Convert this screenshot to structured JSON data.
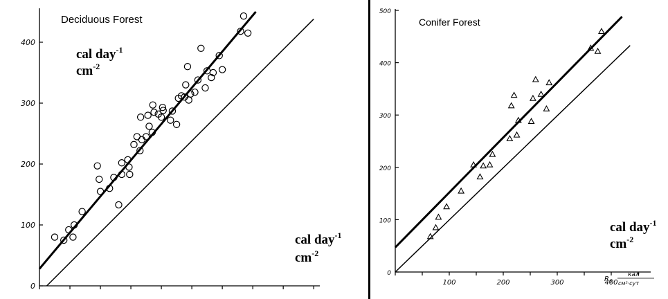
{
  "chart_data": [
    {
      "type": "scatter",
      "title": "Deciduous Forest",
      "y_unit_label": {
        "base1": "cal day",
        "sup1": "-1",
        "base2": "cm",
        "sup2": "-2"
      },
      "x_unit_label": {
        "base1": "cal day",
        "sup1": "-1",
        "base2": "cm",
        "sup2": "-2"
      },
      "xlim": [
        0,
        460
      ],
      "ylim": [
        0,
        450
      ],
      "x_ticks": [
        0,
        50,
        100,
        150,
        200,
        250,
        300,
        350,
        400,
        450
      ],
      "y_ticks": [
        0,
        100,
        200,
        300,
        400
      ],
      "y_tick_labels": [
        "0",
        "100",
        "200",
        "300",
        "400"
      ],
      "grid": false,
      "marker": "circle",
      "series": [
        {
          "points": [
            [
              25,
              80
            ],
            [
              40,
              75
            ],
            [
              48,
              92
            ],
            [
              55,
              80
            ],
            [
              57,
              100
            ],
            [
              70,
              122
            ],
            [
              95,
              197
            ],
            [
              98,
              175
            ],
            [
              100,
              155
            ],
            [
              115,
              160
            ],
            [
              122,
              178
            ],
            [
              130,
              133
            ],
            [
              135,
              183
            ],
            [
              135,
              202
            ],
            [
              145,
              207
            ],
            [
              147,
              195
            ],
            [
              148,
              183
            ],
            [
              155,
              232
            ],
            [
              160,
              245
            ],
            [
              165,
              222
            ],
            [
              166,
              277
            ],
            [
              168,
              240
            ],
            [
              175,
              245
            ],
            [
              178,
              280
            ],
            [
              180,
              262
            ],
            [
              185,
              252
            ],
            [
              186,
              297
            ],
            [
              188,
              285
            ],
            [
              195,
              282
            ],
            [
              200,
              277
            ],
            [
              202,
              293
            ],
            [
              203,
              288
            ],
            [
              215,
              272
            ],
            [
              218,
              287
            ],
            [
              225,
              265
            ],
            [
              228,
              308
            ],
            [
              233,
              312
            ],
            [
              238,
              310
            ],
            [
              240,
              330
            ],
            [
              243,
              360
            ],
            [
              245,
              305
            ],
            [
              248,
              315
            ],
            [
              255,
              318
            ],
            [
              260,
              338
            ],
            [
              265,
              390
            ],
            [
              272,
              325
            ],
            [
              275,
              353
            ],
            [
              282,
              342
            ],
            [
              285,
              350
            ],
            [
              295,
              378
            ],
            [
              300,
              355
            ],
            [
              330,
              418
            ],
            [
              335,
              443
            ],
            [
              342,
              415
            ]
          ]
        }
      ],
      "fit_line": [
        [
          0,
          28
        ],
        [
          355,
          450
        ]
      ],
      "reference_line": [
        [
          12,
          0
        ],
        [
          450,
          438
        ]
      ]
    },
    {
      "type": "scatter",
      "title": "Conifer Forest",
      "y_unit_label": {
        "base1": "cal day",
        "sup1": "-1",
        "base2": "cm",
        "sup2": "-2"
      },
      "x_unit_label": {
        "base1": "cal day",
        "sup1": "-1",
        "base2": "cm",
        "sup2": "-2"
      },
      "x_axis_russian_label": {
        "symbol": "R",
        "sub": "б",
        "num": "кал",
        "den": "см²·сут"
      },
      "xlim": [
        0,
        500
      ],
      "ylim": [
        0,
        500
      ],
      "x_ticks": [
        0,
        50,
        100,
        150,
        200,
        250,
        300,
        350,
        400,
        450
      ],
      "x_tick_labels": {
        "100": "100",
        "200": "200",
        "300": "300",
        "400": "400"
      },
      "y_ticks": [
        0,
        100,
        200,
        300,
        400,
        500
      ],
      "y_tick_labels": [
        "0",
        "100",
        "200",
        "300",
        "400",
        "500"
      ],
      "grid": false,
      "marker": "triangle",
      "series": [
        {
          "points": [
            [
              65,
              68
            ],
            [
              75,
              85
            ],
            [
              80,
              105
            ],
            [
              95,
              125
            ],
            [
              122,
              155
            ],
            [
              145,
              205
            ],
            [
              157,
              182
            ],
            [
              163,
              203
            ],
            [
              175,
              205
            ],
            [
              180,
              225
            ],
            [
              212,
              255
            ],
            [
              215,
              318
            ],
            [
              220,
              338
            ],
            [
              225,
              262
            ],
            [
              228,
              290
            ],
            [
              252,
              288
            ],
            [
              255,
              332
            ],
            [
              260,
              368
            ],
            [
              270,
              340
            ],
            [
              280,
              312
            ],
            [
              285,
              362
            ],
            [
              362,
              428
            ],
            [
              375,
              422
            ],
            [
              382,
              460
            ]
          ]
        }
      ],
      "fit_line": [
        [
          0,
          47
        ],
        [
          420,
          488
        ]
      ],
      "reference_line": [
        [
          0,
          0
        ],
        [
          435,
          433
        ]
      ]
    }
  ]
}
